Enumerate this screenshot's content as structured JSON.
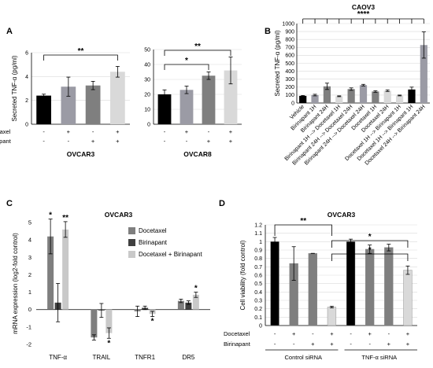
{
  "chart_data": [
    {
      "panel": "A",
      "type": "bar",
      "title": "OVCAR3",
      "ylabel": "Secreted TNF-α (pg/ml)",
      "ylim": [
        0,
        6
      ],
      "yticks": [
        0,
        2,
        4,
        6
      ],
      "row_labels": [
        "Docetaxel",
        "Birinapant"
      ],
      "conditions": [
        [
          "-",
          "-"
        ],
        [
          "+",
          "-"
        ],
        [
          "-",
          "+"
        ],
        [
          "+",
          "+"
        ]
      ],
      "values": [
        2.4,
        3.15,
        3.25,
        4.4
      ],
      "errors": [
        0.12,
        0.8,
        0.35,
        0.45
      ],
      "colors": [
        "#000000",
        "#9b9ba5",
        "#7f7f7f",
        "#d9d9d9"
      ],
      "significance": "**"
    },
    {
      "panel": "A",
      "type": "bar",
      "title": "OVCAR8",
      "ylim": [
        0,
        50
      ],
      "yticks": [
        0,
        10,
        20,
        30,
        40,
        50
      ],
      "conditions": [
        [
          "-",
          "-"
        ],
        [
          "+",
          "-"
        ],
        [
          "-",
          "+"
        ],
        [
          "+",
          "+"
        ]
      ],
      "values": [
        20,
        23,
        32.5,
        36
      ],
      "errors": [
        3,
        2.5,
        2.5,
        9
      ],
      "colors": [
        "#000000",
        "#9b9ba5",
        "#7f7f7f",
        "#d9d9d9"
      ],
      "significance": [
        "*",
        "**"
      ]
    },
    {
      "panel": "B",
      "type": "bar",
      "title": "CAOV3",
      "ylabel": "Secreted TNF-α (pg/ml)",
      "ylim": [
        0,
        1000
      ],
      "yticks": [
        0,
        100,
        200,
        300,
        400,
        500,
        600,
        700,
        800,
        900,
        1000
      ],
      "categories": [
        "Vehicle",
        "Birinapant 1H",
        "Birinapant 24H",
        "Birinapant 1H --> Docetaxel 1H",
        "Birinapant 24H --> Docetaxel 24H",
        "Birinapant 24H --> Docetaxel 24H",
        "Docetaxel 1H",
        "Docetaxel 24H",
        "Docetaxel 1H --> Birinapant 1H",
        "Docetaxel 1H --> Birinapant 1H",
        "Docetaxel 24H --> Birinapant 24H"
      ],
      "values": [
        90,
        100,
        210,
        85,
        175,
        225,
        145,
        155,
        95,
        170,
        730
      ],
      "errors": [
        5,
        10,
        40,
        5,
        15,
        10,
        10,
        10,
        5,
        30,
        165
      ],
      "colors": [
        "#000000",
        "#9b9ba5",
        "#7f7f7f",
        "#d9d9d9",
        "#7f7f7f",
        "#9b9ba5",
        "#7f7f7f",
        "#d9d9d9",
        "#d9d9d9",
        "#000000",
        "#9b9ba5"
      ],
      "significance": "****"
    },
    {
      "panel": "C",
      "type": "bar",
      "title": "OVCAR3",
      "ylabel": "mRNA expression (log2-fold control)",
      "ylim": [
        -2,
        5
      ],
      "yticks": [
        -2,
        -1,
        0,
        1,
        2,
        3,
        4,
        5
      ],
      "categories": [
        "TNF-α",
        "TRAIL",
        "TNFR1",
        "DR5"
      ],
      "series": [
        {
          "name": "Docetaxel",
          "values": [
            4.2,
            -1.6,
            -0.1,
            0.5
          ],
          "errors": [
            1.0,
            0.15,
            0.3,
            0.1
          ],
          "color": "#7f7f7f"
        },
        {
          "name": "Birinapant",
          "values": [
            0.4,
            -0.05,
            0.1,
            0.4
          ],
          "errors": [
            1.1,
            0.4,
            0.1,
            0.1
          ],
          "color": "#404040"
        },
        {
          "name": "Docetaxel + Birinapant",
          "values": [
            4.6,
            -1.35,
            -0.25,
            0.85
          ],
          "errors": [
            0.45,
            0.3,
            0.15,
            0.15
          ],
          "color": "#c9c9c9"
        }
      ],
      "significance": [
        [
          "*",
          "",
          "**"
        ],
        [
          "",
          "",
          "*"
        ],
        [
          "",
          "",
          "*"
        ],
        [
          "",
          "",
          "*"
        ]
      ],
      "legend": "top-right"
    },
    {
      "panel": "D",
      "type": "bar",
      "title": "OVCAR3",
      "ylabel": "Cell viability (fold control)",
      "ylim": [
        0,
        1.2
      ],
      "yticks": [
        0,
        0.1,
        0.2,
        0.3,
        0.4,
        0.5,
        0.6,
        0.7,
        0.8,
        0.9,
        1,
        1.1,
        1.2
      ],
      "ytick_labels": [
        "0",
        "0.1",
        "0.2",
        "0.3",
        "0.4",
        "0.5",
        "0.6",
        "0.7",
        "0.8",
        "0.9",
        "1",
        "1.1",
        "1.2"
      ],
      "row_labels": [
        "Docetaxel",
        "Birinapant"
      ],
      "conditions": [
        [
          "-",
          "-"
        ],
        [
          "+",
          "-"
        ],
        [
          "-",
          "+"
        ],
        [
          "+",
          "+"
        ],
        [
          "-",
          "-"
        ],
        [
          "+",
          "-"
        ],
        [
          "-",
          "+"
        ],
        [
          "+",
          "+"
        ]
      ],
      "groups": [
        "Control siRNA",
        "TNF-α siRNA"
      ],
      "values": [
        1.0,
        0.74,
        0.86,
        0.22,
        1.0,
        0.91,
        0.93,
        0.66
      ],
      "errors": [
        0.05,
        0.2,
        0.0,
        0.01,
        0.03,
        0.05,
        0.04,
        0.05
      ],
      "colors": [
        "#000000",
        "#7f7f7f",
        "#7f7f7f",
        "#d9d9d9",
        "#000000",
        "#7f7f7f",
        "#7f7f7f",
        "#d9d9d9"
      ],
      "significance": [
        "**",
        "*",
        "*"
      ]
    }
  ]
}
